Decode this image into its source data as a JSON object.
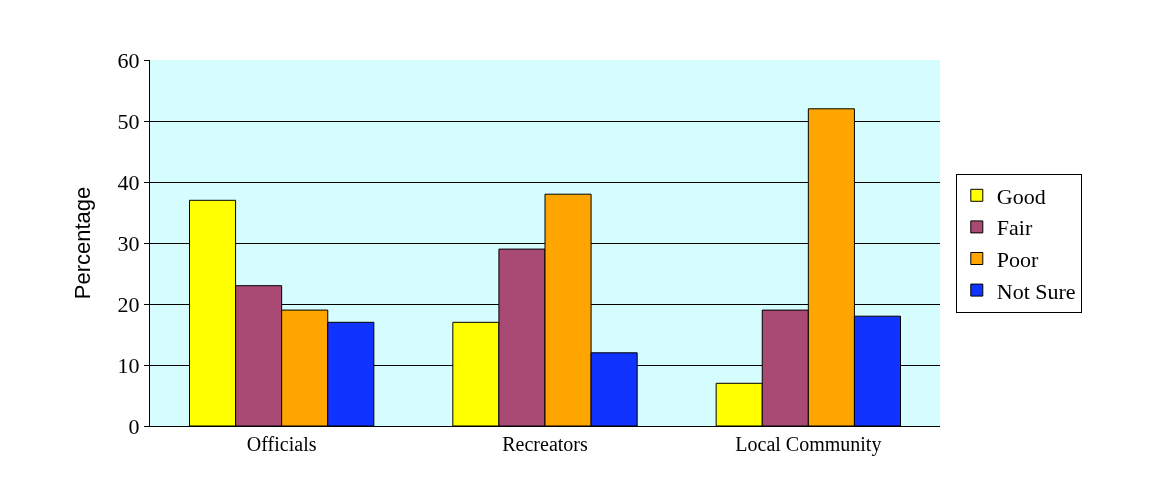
{
  "chart_data": {
    "type": "bar",
    "ylabel": "Percentage",
    "categories": [
      "Officials",
      "Recreators",
      "Local Community"
    ],
    "series": [
      {
        "name": "Good",
        "color": "#ffff00",
        "values": [
          37,
          17,
          7
        ]
      },
      {
        "name": "Fair",
        "color": "#a94a74",
        "values": [
          23,
          29,
          19
        ]
      },
      {
        "name": "Poor",
        "color": "#ffa500",
        "values": [
          19,
          38,
          52
        ]
      },
      {
        "name": "Not Sure",
        "color": "#1133ff",
        "values": [
          17,
          12,
          18
        ]
      }
    ],
    "ylim": [
      0,
      60
    ],
    "yticks": [
      0,
      10,
      20,
      30,
      40,
      50,
      60
    ],
    "grid": "y",
    "legend": "right"
  }
}
